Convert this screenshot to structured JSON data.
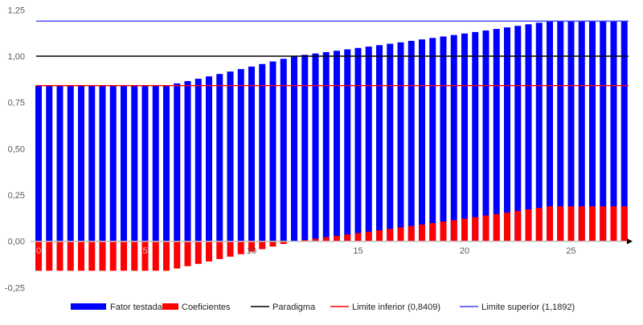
{
  "chart_data": {
    "type": "bar",
    "title": "",
    "xlabel": "",
    "ylabel": "",
    "ylim": [
      -0.25,
      1.25
    ],
    "xlim": [
      0,
      27.5
    ],
    "y_ticks": [
      "-0,25",
      "0,00",
      "0,25",
      "0,50",
      "0,75",
      "1,00",
      "1,25"
    ],
    "y_tick_values": [
      -0.25,
      0,
      0.25,
      0.5,
      0.75,
      1.0,
      1.25
    ],
    "x_ticks": [
      "0",
      "5",
      "10",
      "15",
      "20",
      "25"
    ],
    "x_tick_values": [
      0,
      5,
      10,
      15,
      20,
      25
    ],
    "grid": false,
    "legend_position": "bottom",
    "x": [
      0,
      0.5,
      1,
      1.5,
      2,
      2.5,
      3,
      3.5,
      4,
      4.5,
      5,
      5.5,
      6,
      6.5,
      7,
      7.5,
      8,
      8.5,
      9,
      9.5,
      10,
      10.5,
      11,
      11.5,
      12,
      12.5,
      13,
      13.5,
      14,
      14.5,
      15,
      15.5,
      16,
      16.5,
      17,
      17.5,
      18,
      18.5,
      19,
      19.5,
      20,
      20.5,
      21,
      21.5,
      22,
      22.5,
      23,
      23.5,
      24,
      24.5,
      25,
      25.5,
      26,
      26.5,
      27,
      27.5
    ],
    "series": [
      {
        "name": "Fator testada",
        "color": "#0000FF",
        "values": [
          0.8409,
          0.8409,
          0.8409,
          0.8409,
          0.8409,
          0.8409,
          0.8409,
          0.8409,
          0.8409,
          0.8409,
          0.8409,
          0.8409,
          0.8409,
          0.8531,
          0.8655,
          0.8781,
          0.8909,
          0.9039,
          0.917,
          0.9303,
          0.9439,
          0.9576,
          0.9715,
          0.9857,
          1.0,
          1.0072,
          1.0145,
          1.0219,
          1.0293,
          1.0368,
          1.0443,
          1.0518,
          1.0595,
          1.0671,
          1.0749,
          1.0827,
          1.0905,
          1.0984,
          1.1064,
          1.1144,
          1.1225,
          1.1306,
          1.1388,
          1.1471,
          1.1554,
          1.1638,
          1.1722,
          1.1807,
          1.1892,
          1.1892,
          1.1892,
          1.1892,
          1.1892,
          1.1892,
          1.1892,
          1.1892
        ]
      },
      {
        "name": "Coeficientes",
        "color": "#FF0000",
        "values": [
          -0.1591,
          -0.1591,
          -0.1591,
          -0.1591,
          -0.1591,
          -0.1591,
          -0.1591,
          -0.1591,
          -0.1591,
          -0.1591,
          -0.1591,
          -0.1591,
          -0.1591,
          -0.1469,
          -0.1345,
          -0.1219,
          -0.1091,
          -0.0961,
          -0.083,
          -0.0697,
          -0.0561,
          -0.0424,
          -0.0285,
          -0.0143,
          0.0,
          0.0072,
          0.0145,
          0.0219,
          0.0293,
          0.0368,
          0.0443,
          0.0518,
          0.0595,
          0.0671,
          0.0749,
          0.0827,
          0.0905,
          0.0984,
          0.1064,
          0.1144,
          0.1225,
          0.1306,
          0.1388,
          0.1471,
          0.1554,
          0.1638,
          0.1722,
          0.1807,
          0.1892,
          0.1892,
          0.1892,
          0.1892,
          0.1892,
          0.1892,
          0.1892,
          0.1892
        ]
      }
    ],
    "reference_lines": [
      {
        "name": "Paradigma",
        "value": 1.0,
        "color": "#000000"
      },
      {
        "name": "Limite inferior (0,8409)",
        "value": 0.8409,
        "color": "#FF0000"
      },
      {
        "name": "Limite superior (1,1892)",
        "value": 1.1892,
        "color": "#0000FF"
      }
    ]
  },
  "legend": {
    "fator": "Fator testada",
    "coef": "Coeficientes",
    "paradigma": "Paradigma",
    "inferior": "Limite inferior (0,8409)",
    "superior": "Limite superior (1,1892)"
  }
}
